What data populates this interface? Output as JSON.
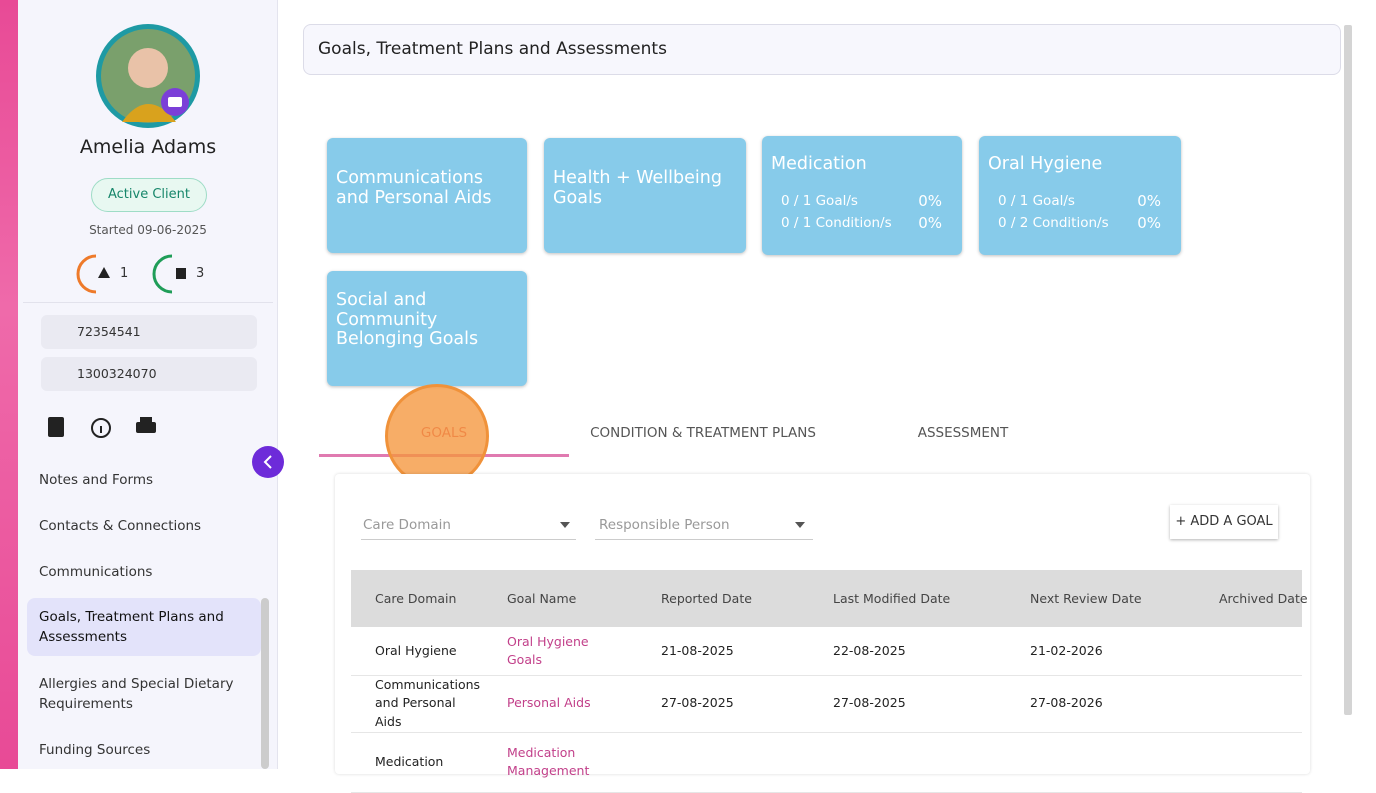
{
  "sidebar": {
    "client_name": "Amelia Adams",
    "status": "Active Client",
    "started": "Started 09-06-2025",
    "alerts": "1",
    "documents": "3",
    "phone": "72354541",
    "mobile": "1300324070",
    "nav": [
      "Notes and Forms",
      "Contacts & Connections",
      "Communications",
      "Goals, Treatment Plans and Assessments",
      "Allergies and Special Dietary Requirements",
      "Funding Sources"
    ]
  },
  "header": {
    "title": "Goals, Treatment Plans and Assessments"
  },
  "cards": [
    {
      "title": "Communications and Personal Aids"
    },
    {
      "title": "Health + Wellbeing Goals"
    },
    {
      "title": "Medication",
      "stats": [
        [
          "0 / 1 Goal/s",
          "0%"
        ],
        [
          "0 / 1 Condition/s",
          "0%"
        ]
      ]
    },
    {
      "title": "Oral Hygiene",
      "stats": [
        [
          "0 / 1 Goal/s",
          "0%"
        ],
        [
          "0 / 2 Condition/s",
          "0%"
        ]
      ]
    },
    {
      "title": "Social and Community Belonging Goals"
    }
  ],
  "tabs": [
    "GOALS",
    "CONDITION & TREATMENT PLANS",
    "ASSESSMENT"
  ],
  "filters": [
    "Care Domain",
    "Responsible Person"
  ],
  "add_button": "+ ADD A GOAL",
  "table": {
    "columns": [
      "Care Domain",
      "Goal Name",
      "Reported Date",
      "Last Modified Date",
      "Next Review Date",
      "Archived Date"
    ],
    "rows": [
      [
        "Oral Hygiene",
        "Oral Hygiene Goals",
        "21-08-2025",
        "22-08-2025",
        "21-02-2026"
      ],
      [
        "Communications and Personal Aids",
        "Personal Aids",
        "27-08-2025",
        "27-08-2025",
        "27-08-2026"
      ],
      [
        "Medication",
        "Medication Management"
      ]
    ]
  }
}
